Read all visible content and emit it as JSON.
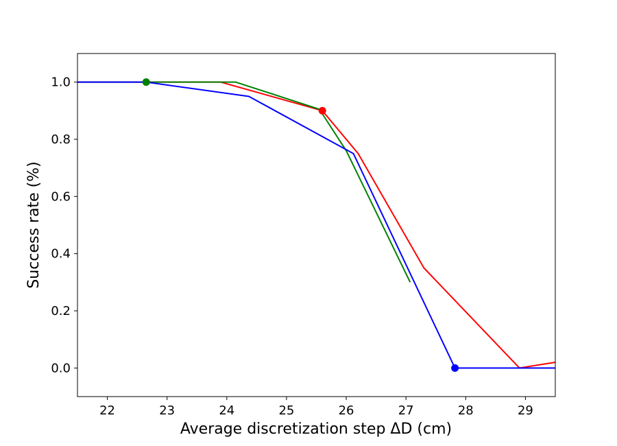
{
  "chart_data": {
    "type": "line",
    "title": "",
    "xlabel": "Average discretization step ΔD (cm)",
    "ylabel": "Success rate (%)",
    "xlim": [
      21.5,
      29.5
    ],
    "ylim": [
      -0.1,
      1.1
    ],
    "xticks": [
      22,
      23,
      24,
      25,
      26,
      27,
      28,
      29
    ],
    "yticks": [
      0.0,
      0.2,
      0.4,
      0.6,
      0.8,
      1.0
    ],
    "xtick_labels": [
      "22",
      "23",
      "24",
      "25",
      "26",
      "27",
      "28",
      "29"
    ],
    "ytick_labels": [
      "0.0",
      "0.2",
      "0.4",
      "0.6",
      "0.8",
      "1.0"
    ],
    "grid": false,
    "series": [
      {
        "color": "#ff0000",
        "x": [
          21.5,
          23.9,
          25.6,
          26.2,
          27.3,
          28.9,
          29.5
        ],
        "y": [
          1.0,
          1.0,
          0.9,
          0.75,
          0.35,
          0.0,
          0.02
        ],
        "marker": {
          "x": 25.6,
          "y": 0.9
        }
      },
      {
        "color": "#008000",
        "x": [
          21.5,
          24.15,
          25.55,
          26.0,
          27.07
        ],
        "y": [
          1.0,
          1.0,
          0.905,
          0.76,
          0.3
        ],
        "marker": {
          "x": 22.65,
          "y": 1.0
        }
      },
      {
        "color": "#0000ff",
        "x": [
          21.5,
          22.65,
          24.37,
          26.12,
          27.82,
          29.5
        ],
        "y": [
          1.0,
          1.0,
          0.95,
          0.75,
          0.0,
          0.0
        ],
        "marker": {
          "x": 27.82,
          "y": 0.0
        }
      }
    ]
  }
}
